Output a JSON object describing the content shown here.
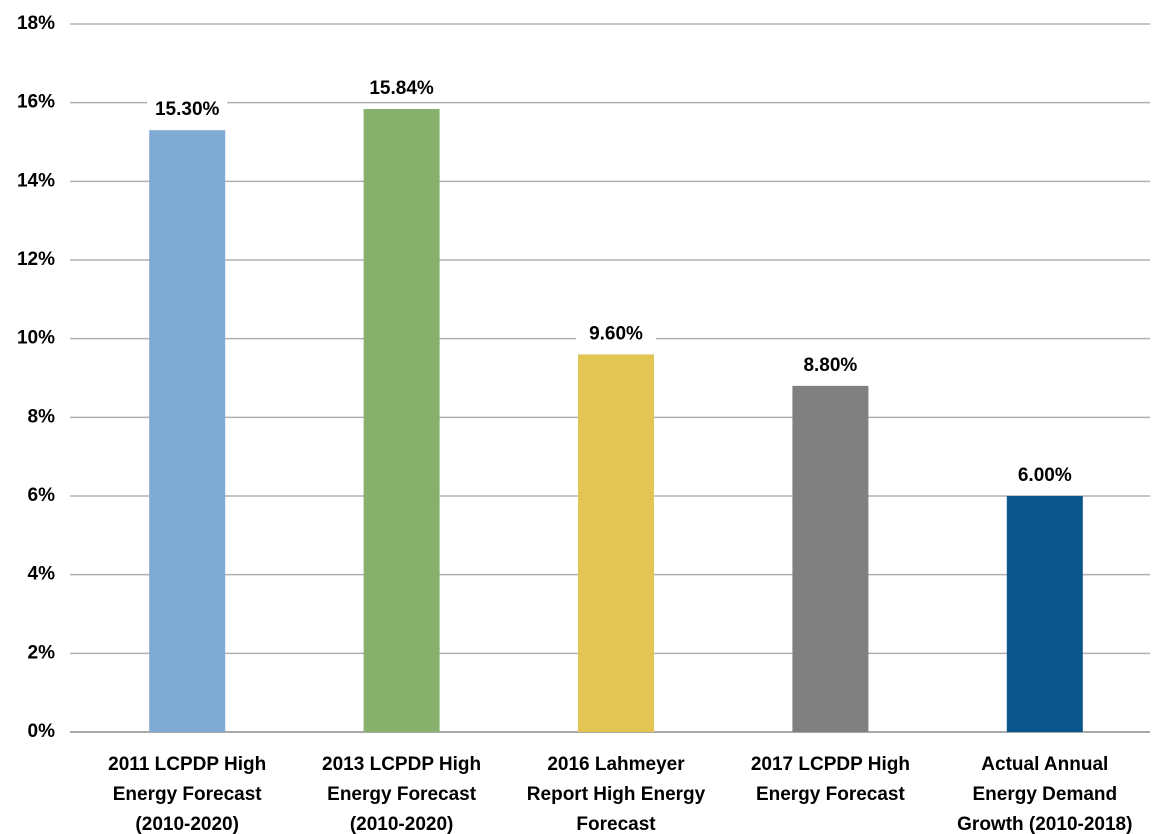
{
  "chart_data": {
    "type": "bar",
    "categories": [
      "2011 LCPDP High\nEnergy Forecast\n(2010-2020)",
      "2013 LCPDP High\nEnergy Forecast\n(2010-2020)",
      "2016 Lahmeyer\nReport High Energy\nForecast",
      "2017 LCPDP High\nEnergy Forecast",
      "Actual Annual\nEnergy Demand\nGrowth (2010-2018)"
    ],
    "values": [
      15.3,
      15.84,
      9.6,
      8.8,
      6.0
    ],
    "value_labels": [
      "15.30%",
      "15.84%",
      "9.60%",
      "8.80%",
      "6.00%"
    ],
    "colors": [
      "#7faad3",
      "#87b06c",
      "#e3c553",
      "#808080",
      "#0a568c"
    ],
    "ylim": [
      0,
      18
    ],
    "yticks": [
      {
        "value": 0,
        "label": "0%"
      },
      {
        "value": 2,
        "label": "2%"
      },
      {
        "value": 4,
        "label": "4%"
      },
      {
        "value": 6,
        "label": "6%"
      },
      {
        "value": 8,
        "label": "8%"
      },
      {
        "value": 10,
        "label": "10%"
      },
      {
        "value": 12,
        "label": "12%"
      },
      {
        "value": 14,
        "label": "14%"
      },
      {
        "value": 16,
        "label": "16%"
      },
      {
        "value": 18,
        "label": "18%"
      }
    ],
    "grid": true
  }
}
